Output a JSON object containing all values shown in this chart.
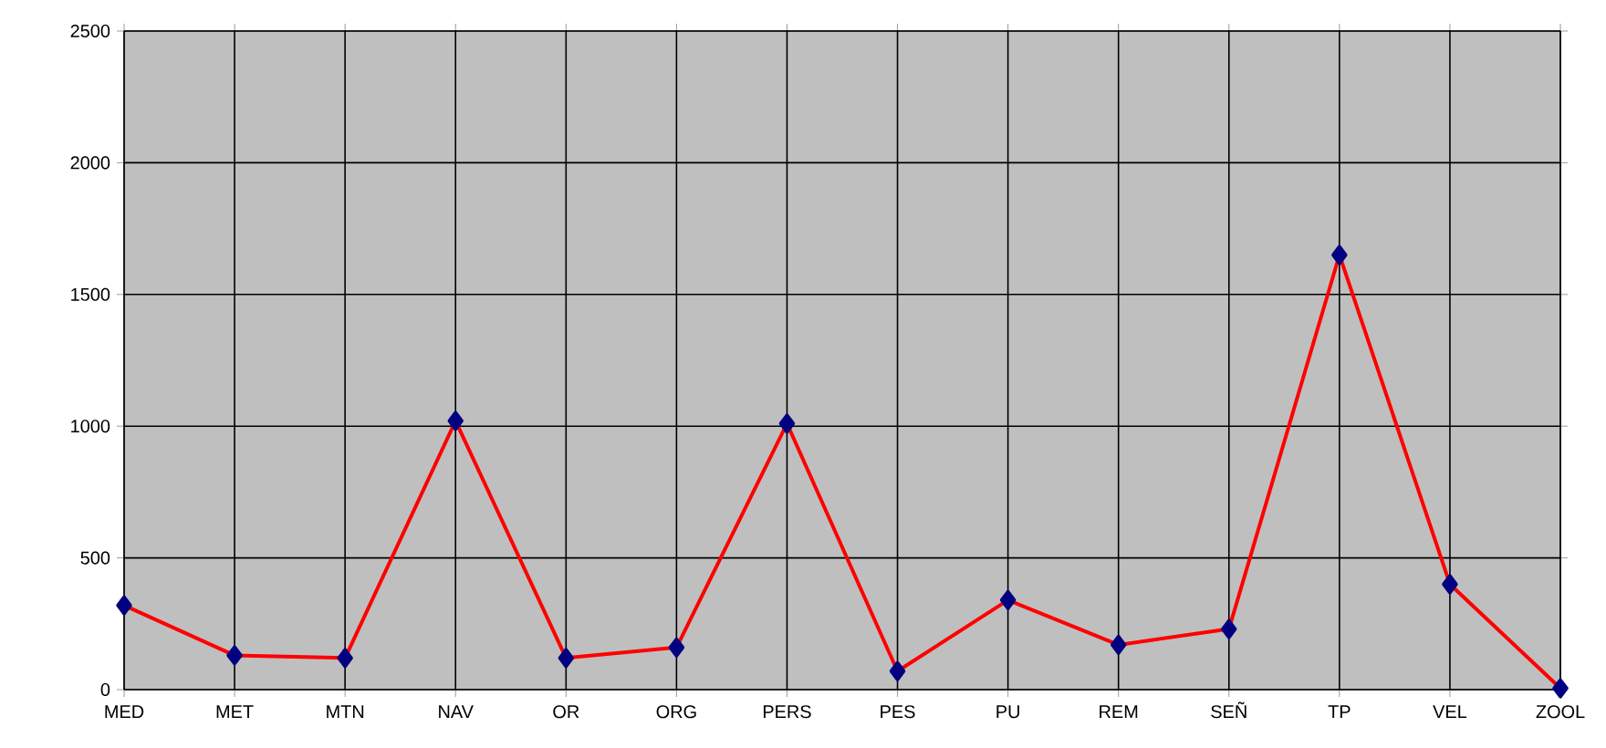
{
  "chart_data": {
    "type": "line",
    "categories": [
      "MED",
      "MET",
      "MTN",
      "NAV",
      "OR",
      "ORG",
      "PERS",
      "PES",
      "PU",
      "REM",
      "SEÑ",
      "TP",
      "VEL",
      "ZOOL"
    ],
    "series": [
      {
        "color": "#ff0000",
        "values": [
          320,
          130,
          120,
          1020,
          120,
          160,
          1010,
          70,
          340,
          170,
          230,
          1650,
          400,
          5
        ]
      }
    ],
    "ylim": [
      0,
      2500
    ],
    "yticks": [
      0,
      500,
      1000,
      1500,
      2000,
      2500
    ],
    "grid": true,
    "marker": "diamond",
    "line_style": "solid"
  }
}
